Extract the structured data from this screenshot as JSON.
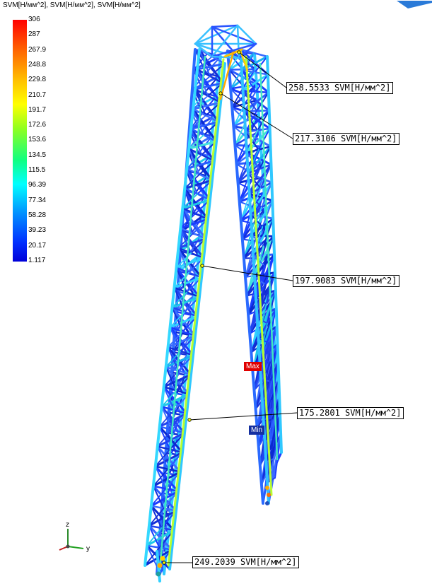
{
  "legend": {
    "title": "SVM[Н/мм^2], SVM[Н/мм^2], SVM[Н/мм^2]",
    "labels": [
      "306",
      "287",
      "267.9",
      "248.8",
      "229.8",
      "210.7",
      "191.7",
      "172.6",
      "153.6",
      "134.5",
      "115.5",
      "96.39",
      "77.34",
      "58.28",
      "39.23",
      "20.17",
      "1.117"
    ],
    "colors": [
      "#ff0000",
      "#ff2a00",
      "#ff5200",
      "#ff8000",
      "#ffaa00",
      "#ffd200",
      "#ffff00",
      "#aaff00",
      "#55ff00",
      "#00ff55",
      "#00ffaa",
      "#00ffff",
      "#00d2ff",
      "#00a0ff",
      "#0060ff",
      "#0020ff",
      "#0000e0"
    ]
  },
  "callouts": [
    {
      "text": "258.5533 SVM[Н/мм^2]"
    },
    {
      "text": "217.3106 SVM[Н/мм^2]"
    },
    {
      "text": "197.9083 SVM[Н/мм^2]"
    },
    {
      "text": "175.2801 SVM[Н/мм^2]"
    },
    {
      "text": "249.2039 SVM[Н/мм^2]"
    }
  ],
  "markers": {
    "max": "Max",
    "min": "Min"
  },
  "axes": {
    "z": "z",
    "y": "y"
  }
}
